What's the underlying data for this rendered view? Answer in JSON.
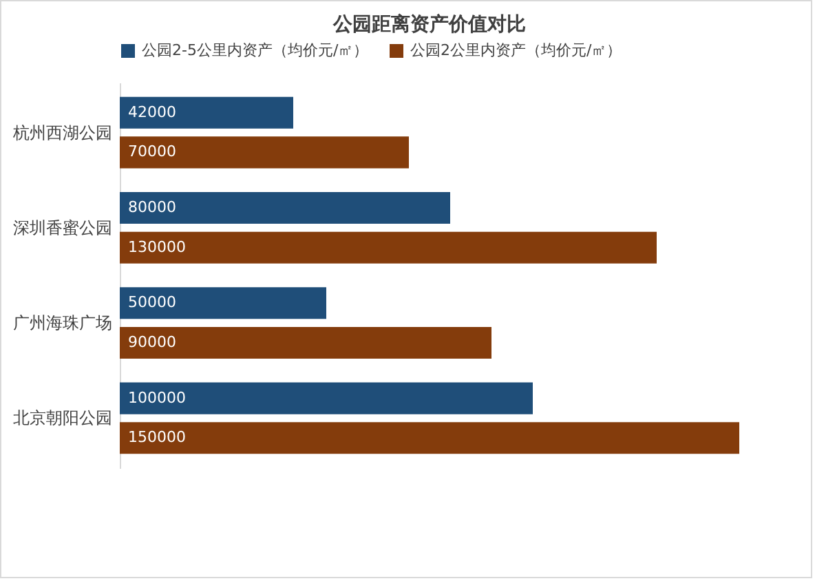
{
  "chart_data": {
    "type": "bar",
    "orientation": "horizontal",
    "title": "公园距离资产价值对比",
    "categories": [
      "杭州西湖公园",
      "深圳香蜜公园",
      "广州海珠广场",
      "北京朝阳公园"
    ],
    "series": [
      {
        "name": "公园2-5公里内资产（均价元/㎡）",
        "color": "#1f4e79",
        "values": [
          42000,
          80000,
          50000,
          100000
        ]
      },
      {
        "name": "公园2公里内资产（均价元/㎡）",
        "color": "#843c0c",
        "values": [
          70000,
          130000,
          90000,
          150000
        ]
      }
    ],
    "data_labels": true,
    "legend": "top",
    "grid": false
  }
}
